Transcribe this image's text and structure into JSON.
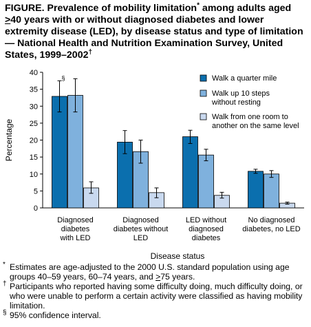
{
  "title": {
    "part1": "FIGURE. Prevalence of mobility limitation",
    "mark1": "*",
    "part2": " among adults aged ",
    "ge_symbol": ">",
    "part3": "40 years with or without diagnosed diabetes and lower extremity disease (LED), by disease status and type of limitation — National Health and Nutrition Examination Survey, United States, 1999–2002",
    "mark2": "†"
  },
  "chart_data": {
    "type": "bar",
    "categories": [
      [
        "Diagnosed",
        "diabetes",
        "with LED"
      ],
      [
        "Diagnosed",
        "diabetes without",
        "LED"
      ],
      [
        "LED without",
        "diagnosed",
        "diabetes"
      ],
      [
        "No diagnosed",
        "diabetes, no LED"
      ]
    ],
    "series": [
      {
        "name": "Walk a quarter mile",
        "color": "#0b6fae",
        "values": [
          32.9,
          19.4,
          21.0,
          10.8
        ],
        "ci": [
          [
            28.3,
            37.5
          ],
          [
            16.0,
            22.8
          ],
          [
            19.0,
            22.9
          ],
          [
            10.2,
            11.4
          ]
        ]
      },
      {
        "name": [
          "Walk up 10 steps",
          "without resting"
        ],
        "color": "#7fb1dd",
        "values": [
          33.2,
          16.6,
          15.6,
          10.0
        ],
        "ci": [
          [
            28.3,
            38.1
          ],
          [
            13.2,
            20.0
          ],
          [
            13.9,
            17.3
          ],
          [
            9.0,
            11.0
          ]
        ]
      },
      {
        "name": [
          "Walk from one room to",
          "another on the same level"
        ],
        "color": "#c9d9ef",
        "values": [
          5.9,
          4.5,
          3.7,
          1.4
        ],
        "ci": [
          [
            4.3,
            7.7
          ],
          [
            3.0,
            5.9
          ],
          [
            2.9,
            4.6
          ],
          [
            1.1,
            1.7
          ]
        ]
      }
    ],
    "ylabel": "Percentage",
    "xlabel": "Disease status",
    "ylim": [
      0,
      40
    ],
    "yticks": [
      0,
      5,
      10,
      15,
      20,
      25,
      30,
      35,
      40
    ],
    "annotation": "§",
    "legend_position": "top-right",
    "grid": false
  },
  "footnotes": {
    "f1_mark": "*",
    "f1_text": "Estimates are age-adjusted to the 2000 U.S. standard population using age groups 40–59 years, 60–74 years, and ",
    "f1_ge": ">",
    "f1_end": "75 years.",
    "f2_mark": "†",
    "f2_text": "Participants who reported having some difficulty doing, much difficulty doing, or who were unable to perform a certain activity were classified as having mobility limitation.",
    "f3_mark": "§",
    "f3_text": "95% confidence interval."
  }
}
